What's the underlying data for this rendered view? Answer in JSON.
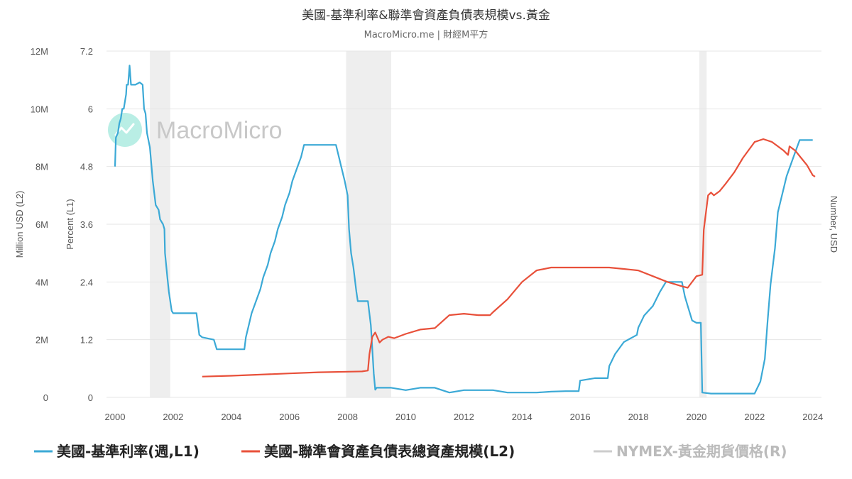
{
  "header": {
    "title": "美國-基準利率&聯準會資產負債表規模vs.黃金",
    "subtitle": "MacroMicro.me | 財經M平方"
  },
  "watermark": {
    "text": "MacroMicro"
  },
  "colors": {
    "rate": "#3ba9d6",
    "balance": "#e8503a",
    "gold": "#cccccc",
    "recession": "#eeeeee",
    "watermark_logo": "#7fe0cf"
  },
  "legend": [
    {
      "label": "美國-基準利率(週,L1)",
      "color": "#3ba9d6",
      "text_color": "#222222"
    },
    {
      "label": "美國-聯準會資產負債表總資產規模(L2)",
      "color": "#e8503a",
      "text_color": "#222222"
    },
    {
      "label": "NYMEX-黃金期貨價格(R)",
      "color": "#cccccc",
      "text_color": "#bbbbbb"
    }
  ],
  "chart_data": {
    "type": "line",
    "x_axis": {
      "ticks": [
        "2000",
        "2002",
        "2004",
        "2006",
        "2008",
        "2010",
        "2012",
        "2014",
        "2016",
        "2018",
        "2020",
        "2022",
        "2024"
      ],
      "range": [
        2000,
        2024.3
      ]
    },
    "y_axis_left_outer": {
      "title": "Million USD (L2)",
      "ticks": [
        "0",
        "2M",
        "4M",
        "6M",
        "8M",
        "10M",
        "12M"
      ],
      "range": [
        0,
        12
      ]
    },
    "y_axis_left_inner": {
      "title": "Percent (L1)",
      "ticks": [
        "0",
        "1.2",
        "2.4",
        "3.6",
        "4.8",
        "6",
        "7.2"
      ],
      "range": [
        0,
        7.2
      ]
    },
    "y_axis_right": {
      "title": "Number, USD"
    },
    "recessions": [
      [
        2001.2,
        2001.9
      ],
      [
        2007.95,
        2009.5
      ],
      [
        2020.1,
        2020.35
      ]
    ],
    "grid": true,
    "legend_position": "bottom",
    "series": [
      {
        "name": "美國-基準利率(週,L1)",
        "axis": "L1",
        "points": [
          [
            2000.0,
            4.8
          ],
          [
            2000.03,
            5.4
          ],
          [
            2000.1,
            5.5
          ],
          [
            2000.15,
            5.7
          ],
          [
            2000.2,
            5.8
          ],
          [
            2000.25,
            6.0
          ],
          [
            2000.3,
            6.0
          ],
          [
            2000.38,
            6.3
          ],
          [
            2000.4,
            6.5
          ],
          [
            2000.45,
            6.5
          ],
          [
            2000.5,
            6.9
          ],
          [
            2000.55,
            6.5
          ],
          [
            2000.7,
            6.5
          ],
          [
            2000.85,
            6.55
          ],
          [
            2000.95,
            6.5
          ],
          [
            2001.0,
            6.0
          ],
          [
            2001.05,
            5.9
          ],
          [
            2001.1,
            5.5
          ],
          [
            2001.2,
            5.2
          ],
          [
            2001.3,
            4.5
          ],
          [
            2001.4,
            4.0
          ],
          [
            2001.5,
            3.9
          ],
          [
            2001.55,
            3.7
          ],
          [
            2001.65,
            3.6
          ],
          [
            2001.7,
            3.5
          ],
          [
            2001.72,
            3.0
          ],
          [
            2001.8,
            2.5
          ],
          [
            2001.85,
            2.2
          ],
          [
            2001.95,
            1.8
          ],
          [
            2002.0,
            1.75
          ],
          [
            2002.5,
            1.75
          ],
          [
            2002.8,
            1.75
          ],
          [
            2002.9,
            1.3
          ],
          [
            2003.0,
            1.25
          ],
          [
            2003.4,
            1.2
          ],
          [
            2003.5,
            1.0
          ],
          [
            2004.0,
            1.0
          ],
          [
            2004.45,
            1.0
          ],
          [
            2004.5,
            1.25
          ],
          [
            2004.6,
            1.5
          ],
          [
            2004.7,
            1.75
          ],
          [
            2004.85,
            2.0
          ],
          [
            2005.0,
            2.25
          ],
          [
            2005.1,
            2.5
          ],
          [
            2005.25,
            2.75
          ],
          [
            2005.35,
            3.0
          ],
          [
            2005.5,
            3.25
          ],
          [
            2005.6,
            3.5
          ],
          [
            2005.75,
            3.75
          ],
          [
            2005.85,
            4.0
          ],
          [
            2006.0,
            4.25
          ],
          [
            2006.1,
            4.5
          ],
          [
            2006.25,
            4.75
          ],
          [
            2006.4,
            5.0
          ],
          [
            2006.5,
            5.25
          ],
          [
            2007.0,
            5.25
          ],
          [
            2007.6,
            5.25
          ],
          [
            2007.7,
            5.0
          ],
          [
            2007.8,
            4.75
          ],
          [
            2007.9,
            4.5
          ],
          [
            2008.0,
            4.2
          ],
          [
            2008.05,
            3.5
          ],
          [
            2008.12,
            3.0
          ],
          [
            2008.2,
            2.7
          ],
          [
            2008.3,
            2.2
          ],
          [
            2008.35,
            2.0
          ],
          [
            2008.7,
            2.0
          ],
          [
            2008.8,
            1.5
          ],
          [
            2008.85,
            1.0
          ],
          [
            2008.9,
            0.5
          ],
          [
            2008.95,
            0.16
          ],
          [
            2009.0,
            0.2
          ],
          [
            2009.5,
            0.2
          ],
          [
            2010.0,
            0.15
          ],
          [
            2010.5,
            0.2
          ],
          [
            2011.0,
            0.2
          ],
          [
            2011.5,
            0.1
          ],
          [
            2012.0,
            0.15
          ],
          [
            2012.5,
            0.15
          ],
          [
            2013.0,
            0.15
          ],
          [
            2013.5,
            0.1
          ],
          [
            2014.0,
            0.1
          ],
          [
            2014.5,
            0.1
          ],
          [
            2015.0,
            0.12
          ],
          [
            2015.5,
            0.13
          ],
          [
            2015.95,
            0.13
          ],
          [
            2016.0,
            0.35
          ],
          [
            2016.5,
            0.4
          ],
          [
            2016.95,
            0.4
          ],
          [
            2017.0,
            0.65
          ],
          [
            2017.2,
            0.9
          ],
          [
            2017.5,
            1.15
          ],
          [
            2017.95,
            1.3
          ],
          [
            2018.0,
            1.45
          ],
          [
            2018.2,
            1.7
          ],
          [
            2018.5,
            1.9
          ],
          [
            2018.75,
            2.2
          ],
          [
            2018.95,
            2.4
          ],
          [
            2019.5,
            2.4
          ],
          [
            2019.6,
            2.1
          ],
          [
            2019.7,
            1.9
          ],
          [
            2019.85,
            1.6
          ],
          [
            2020.0,
            1.55
          ],
          [
            2020.15,
            1.55
          ],
          [
            2020.2,
            0.1
          ],
          [
            2020.5,
            0.08
          ],
          [
            2021.0,
            0.08
          ],
          [
            2021.5,
            0.08
          ],
          [
            2022.0,
            0.08
          ],
          [
            2022.2,
            0.33
          ],
          [
            2022.35,
            0.8
          ],
          [
            2022.45,
            1.6
          ],
          [
            2022.55,
            2.35
          ],
          [
            2022.7,
            3.1
          ],
          [
            2022.8,
            3.85
          ],
          [
            2022.9,
            4.1
          ],
          [
            2023.0,
            4.35
          ],
          [
            2023.1,
            4.6
          ],
          [
            2023.25,
            4.85
          ],
          [
            2023.4,
            5.1
          ],
          [
            2023.55,
            5.35
          ],
          [
            2024.0,
            5.35
          ]
        ]
      },
      {
        "name": "美國-聯準會資產負債表總資產規模(L2)",
        "axis": "L2",
        "points": [
          [
            2003.0,
            0.72
          ],
          [
            2004.0,
            0.75
          ],
          [
            2005.0,
            0.79
          ],
          [
            2006.0,
            0.83
          ],
          [
            2007.0,
            0.87
          ],
          [
            2008.0,
            0.89
          ],
          [
            2008.5,
            0.9
          ],
          [
            2008.7,
            0.93
          ],
          [
            2008.75,
            1.5
          ],
          [
            2008.85,
            2.1
          ],
          [
            2008.95,
            2.25
          ],
          [
            2009.1,
            1.9
          ],
          [
            2009.2,
            2.0
          ],
          [
            2009.4,
            2.1
          ],
          [
            2009.6,
            2.05
          ],
          [
            2010.0,
            2.2
          ],
          [
            2010.5,
            2.35
          ],
          [
            2011.0,
            2.4
          ],
          [
            2011.5,
            2.85
          ],
          [
            2012.0,
            2.9
          ],
          [
            2012.5,
            2.85
          ],
          [
            2012.9,
            2.85
          ],
          [
            2013.0,
            2.95
          ],
          [
            2013.5,
            3.4
          ],
          [
            2014.0,
            4.0
          ],
          [
            2014.5,
            4.4
          ],
          [
            2015.0,
            4.5
          ],
          [
            2016.0,
            4.5
          ],
          [
            2017.0,
            4.5
          ],
          [
            2017.5,
            4.45
          ],
          [
            2018.0,
            4.4
          ],
          [
            2018.5,
            4.2
          ],
          [
            2019.0,
            4.0
          ],
          [
            2019.5,
            3.85
          ],
          [
            2019.7,
            3.8
          ],
          [
            2020.0,
            4.2
          ],
          [
            2020.2,
            4.25
          ],
          [
            2020.25,
            5.8
          ],
          [
            2020.4,
            7.0
          ],
          [
            2020.5,
            7.1
          ],
          [
            2020.6,
            7.0
          ],
          [
            2020.8,
            7.15
          ],
          [
            2021.0,
            7.4
          ],
          [
            2021.3,
            7.8
          ],
          [
            2021.6,
            8.3
          ],
          [
            2022.0,
            8.85
          ],
          [
            2022.3,
            8.95
          ],
          [
            2022.6,
            8.85
          ],
          [
            2023.0,
            8.55
          ],
          [
            2023.15,
            8.4
          ],
          [
            2023.2,
            8.7
          ],
          [
            2023.4,
            8.55
          ],
          [
            2023.6,
            8.3
          ],
          [
            2023.8,
            8.05
          ],
          [
            2024.0,
            7.7
          ],
          [
            2024.08,
            7.65
          ]
        ]
      }
    ]
  }
}
